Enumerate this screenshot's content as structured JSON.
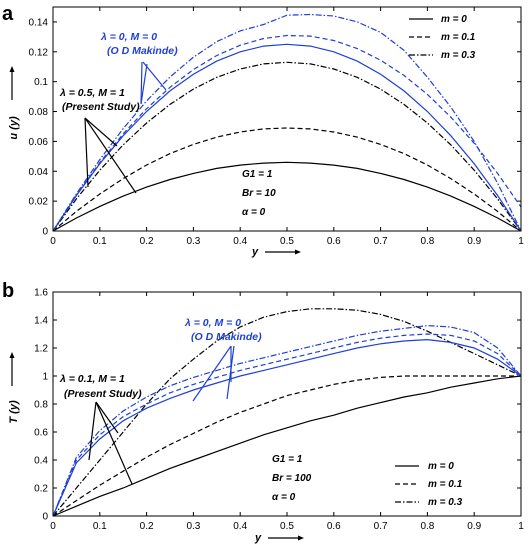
{
  "chart_data": [
    {
      "panel": "a",
      "type": "line",
      "ylabel": "u (y)",
      "xlabel": "y",
      "xlim": [
        0,
        1
      ],
      "ylim": [
        0,
        0.15
      ],
      "xticks": [
        0,
        0.1,
        0.2,
        0.3,
        0.4,
        0.5,
        0.6,
        0.7,
        0.8,
        0.9,
        1
      ],
      "xtick_labels": [
        "0",
        "0.1",
        "0.2",
        "0.3",
        "0.4",
        "0.5",
        "0.6",
        "0.7",
        "0.8",
        "0.9",
        "1"
      ],
      "yticks": [
        0,
        0.02,
        0.04,
        0.06,
        0.08,
        0.1,
        0.12,
        0.14
      ],
      "ytick_labels": [
        "0",
        "0.02",
        "0.04",
        "0.06",
        "0.08",
        "0.1",
        "0.12",
        "0.14"
      ],
      "legend_position": "top-right",
      "legend": [
        {
          "label": "m = 0",
          "dash": "solid"
        },
        {
          "label": "m = 0.1",
          "dash": "dashed"
        },
        {
          "label": "m = 0.3",
          "dash": "dashdot"
        }
      ],
      "params": [
        "G1 = 1",
        "Br = 10",
        "α = 0"
      ],
      "annotations": {
        "blue_line1": "λ = 0,  M = 0",
        "blue_line2": "(O D Makinde)",
        "black_line1": "λ = 0.5,  M = 1",
        "black_line2": "(Present Study)"
      },
      "x": [
        0,
        0.05,
        0.1,
        0.15,
        0.2,
        0.25,
        0.3,
        0.35,
        0.4,
        0.45,
        0.5,
        0.55,
        0.6,
        0.65,
        0.7,
        0.75,
        0.8,
        0.85,
        0.9,
        0.95,
        1
      ],
      "series": [
        {
          "group": "present",
          "m": "0",
          "color": "#000000",
          "dash": "solid",
          "values": [
            0,
            0.0087,
            0.0165,
            0.0234,
            0.0294,
            0.0345,
            0.0386,
            0.0419,
            0.0441,
            0.0455,
            0.046,
            0.0455,
            0.0441,
            0.0419,
            0.0386,
            0.0345,
            0.0294,
            0.0234,
            0.0165,
            0.0087,
            0
          ]
        },
        {
          "group": "present",
          "m": "0.1",
          "color": "#000000",
          "dash": "dashed",
          "values": [
            0,
            0.0131,
            0.0248,
            0.0351,
            0.0442,
            0.0518,
            0.058,
            0.0629,
            0.0663,
            0.0684,
            0.069,
            0.0684,
            0.0663,
            0.0629,
            0.058,
            0.0518,
            0.0442,
            0.0351,
            0.0248,
            0.0131,
            0
          ]
        },
        {
          "group": "present",
          "m": "0.3",
          "color": "#000000",
          "dash": "dashdot",
          "values": [
            0,
            0.0215,
            0.0407,
            0.0577,
            0.0723,
            0.0848,
            0.095,
            0.1029,
            0.1085,
            0.1119,
            0.113,
            0.1119,
            0.1085,
            0.1029,
            0.095,
            0.0848,
            0.0723,
            0.0577,
            0.0407,
            0.0215,
            0
          ]
        },
        {
          "group": "makinde",
          "m": "0",
          "color": "#1f3fd6",
          "dash": "solid",
          "values": [
            0,
            0.0238,
            0.045,
            0.0638,
            0.08,
            0.0938,
            0.105,
            0.1138,
            0.12,
            0.1238,
            0.125,
            0.1238,
            0.12,
            0.1138,
            0.105,
            0.0938,
            0.08,
            0.0638,
            0.045,
            0.0238,
            0
          ]
        },
        {
          "group": "makinde",
          "m": "0.1",
          "color": "#1f3fd6",
          "dash": "dashed",
          "values": [
            0,
            0.024,
            0.0458,
            0.0651,
            0.0819,
            0.0962,
            0.1081,
            0.1175,
            0.1244,
            0.1289,
            0.1309,
            0.1305,
            0.1276,
            0.1222,
            0.1144,
            0.1042,
            0.0915,
            0.0763,
            0.0587,
            0.0386,
            0.0161
          ]
        },
        {
          "group": "makinde",
          "m": "0.3",
          "color": "#1f3fd6",
          "dash": "dashdot",
          "values": [
            0,
            0.0249,
            0.0478,
            0.0686,
            0.0871,
            0.1031,
            0.1164,
            0.1268,
            0.134,
            0.1383,
            0.1445,
            0.145,
            0.144,
            0.14,
            0.133,
            0.121,
            0.103,
            0.083,
            0.06,
            0.032,
            0
          ]
        }
      ]
    },
    {
      "panel": "b",
      "type": "line",
      "ylabel": "T (y)",
      "xlabel": "y",
      "xlim": [
        0,
        1
      ],
      "ylim": [
        0,
        1.6
      ],
      "xticks": [
        0,
        0.1,
        0.2,
        0.3,
        0.4,
        0.5,
        0.6,
        0.7,
        0.8,
        0.9,
        1
      ],
      "xtick_labels": [
        "0",
        "0.1",
        "0.2",
        "0.3",
        "0.4",
        "0.5",
        "0.6",
        "0.7",
        "0.8",
        "0.9",
        "1"
      ],
      "yticks": [
        0,
        0.2,
        0.4,
        0.6,
        0.8,
        1,
        1.2,
        1.4,
        1.6
      ],
      "ytick_labels": [
        "0",
        "0.2",
        "0.4",
        "0.6",
        "0.8",
        "1",
        "1.2",
        "1.4",
        "1.6"
      ],
      "legend_position": "bottom-right",
      "legend": [
        {
          "label": "m = 0",
          "dash": "solid"
        },
        {
          "label": "m = 0.1",
          "dash": "dashed"
        },
        {
          "label": "m = 0.3",
          "dash": "dashdot"
        }
      ],
      "params": [
        "G1 = 1",
        "Br = 100",
        "α = 0"
      ],
      "annotations": {
        "blue_line1": "λ = 0,  M = 0",
        "blue_line2": "(O D Makinde)",
        "black_line1": "λ = 0.1,  M = 1",
        "black_line2": "(Present Study)"
      },
      "x": [
        0,
        0.05,
        0.1,
        0.15,
        0.2,
        0.25,
        0.3,
        0.35,
        0.4,
        0.45,
        0.5,
        0.55,
        0.6,
        0.65,
        0.7,
        0.75,
        0.8,
        0.85,
        0.9,
        0.95,
        1
      ],
      "series": [
        {
          "group": "present",
          "m": "0",
          "color": "#000000",
          "dash": "solid",
          "values": [
            0,
            0.07,
            0.14,
            0.2,
            0.27,
            0.34,
            0.4,
            0.46,
            0.52,
            0.58,
            0.63,
            0.68,
            0.72,
            0.77,
            0.81,
            0.85,
            0.88,
            0.92,
            0.95,
            0.98,
            1.0
          ]
        },
        {
          "group": "present",
          "m": "0.1",
          "color": "#000000",
          "dash": "dashed",
          "values": [
            0,
            0.11,
            0.22,
            0.32,
            0.42,
            0.51,
            0.59,
            0.67,
            0.74,
            0.8,
            0.86,
            0.9,
            0.94,
            0.97,
            0.99,
            1.0,
            1.0,
            1.0,
            1.0,
            1.0,
            1.0
          ]
        },
        {
          "group": "present",
          "m": "0.3",
          "color": "#000000",
          "dash": "dashdot",
          "values": [
            0,
            0.2,
            0.4,
            0.6,
            0.8,
            0.98,
            1.12,
            1.25,
            1.35,
            1.42,
            1.46,
            1.48,
            1.48,
            1.47,
            1.44,
            1.39,
            1.32,
            1.24,
            1.16,
            1.08,
            1.0
          ]
        },
        {
          "group": "makinde",
          "m": "0",
          "color": "#1f3fd6",
          "dash": "solid",
          "values": [
            0,
            0.38,
            0.55,
            0.68,
            0.77,
            0.84,
            0.9,
            0.95,
            1.0,
            1.04,
            1.08,
            1.12,
            1.16,
            1.2,
            1.23,
            1.25,
            1.26,
            1.24,
            1.2,
            1.12,
            1.0
          ]
        },
        {
          "group": "makinde",
          "m": "0.1",
          "color": "#1f3fd6",
          "dash": "dashed",
          "values": [
            0,
            0.4,
            0.58,
            0.71,
            0.8,
            0.88,
            0.94,
            0.99,
            1.04,
            1.08,
            1.12,
            1.16,
            1.2,
            1.24,
            1.27,
            1.29,
            1.3,
            1.29,
            1.25,
            1.16,
            1.0
          ]
        },
        {
          "group": "makinde",
          "m": "0.3",
          "color": "#1f3fd6",
          "dash": "dashdot",
          "values": [
            0,
            0.42,
            0.61,
            0.75,
            0.85,
            0.93,
            0.99,
            1.04,
            1.09,
            1.13,
            1.17,
            1.21,
            1.25,
            1.29,
            1.32,
            1.34,
            1.36,
            1.35,
            1.31,
            1.2,
            1.0
          ]
        }
      ]
    }
  ]
}
